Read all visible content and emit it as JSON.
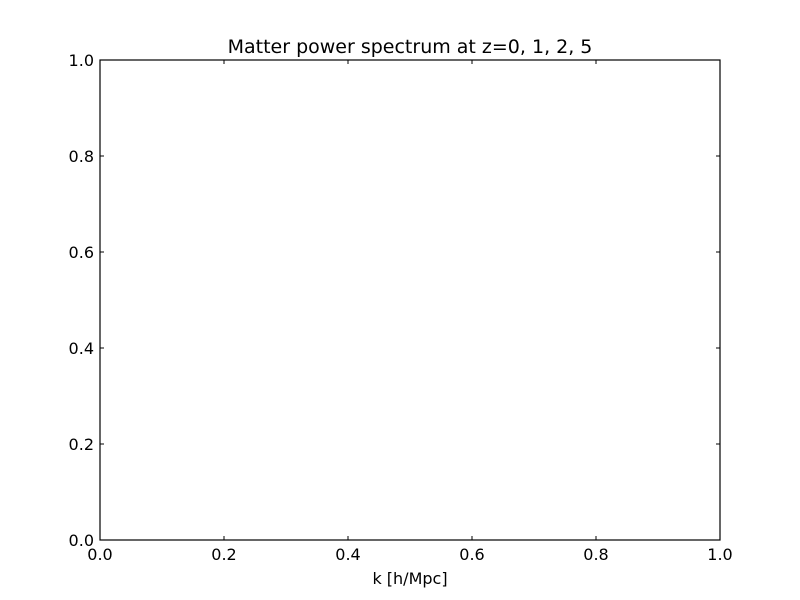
{
  "chart_data": {
    "type": "line",
    "title": "Matter power spectrum at z=0, 1, 2, 5",
    "xlabel": "k [h/Mpc]",
    "ylabel": "",
    "xlim": [
      0.0,
      1.0
    ],
    "ylim": [
      0.0,
      1.0
    ],
    "xticks": [
      "0.0",
      "0.2",
      "0.4",
      "0.6",
      "0.8",
      "1.0"
    ],
    "yticks": [
      "0.0",
      "0.2",
      "0.4",
      "0.6",
      "0.8",
      "1.0"
    ],
    "grid": false,
    "legend": "none",
    "series": []
  }
}
